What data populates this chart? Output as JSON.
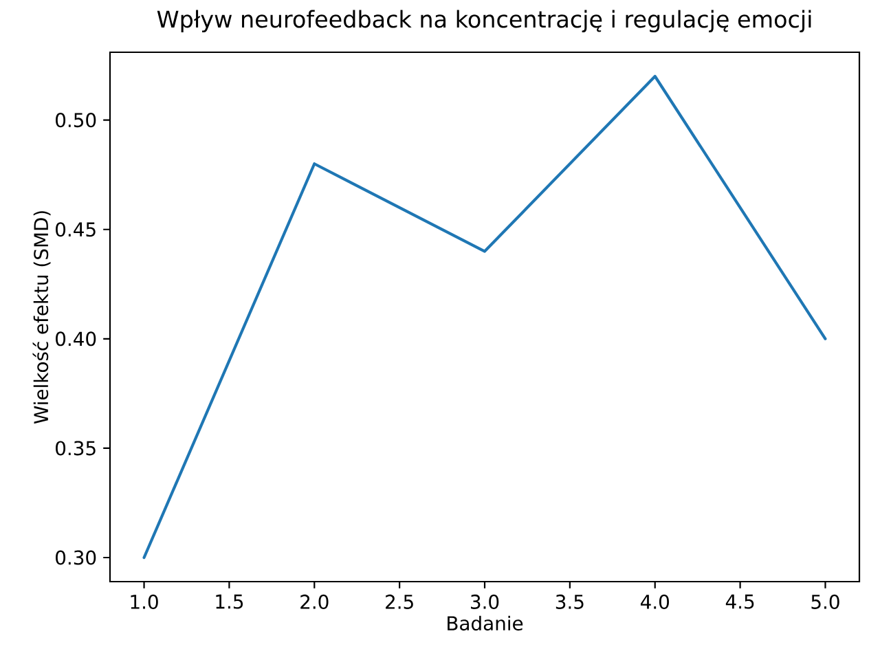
{
  "chart_data": {
    "type": "line",
    "title": "Wpływ neurofeedback na koncentrację i regulację emocji",
    "xlabel": "Badanie",
    "ylabel": "Wielkość efektu (SMD)",
    "x": [
      1,
      2,
      3,
      4,
      5
    ],
    "values": [
      0.3,
      0.48,
      0.44,
      0.52,
      0.4
    ],
    "color": "#1f77b4",
    "marker": "none",
    "line_style": "solid",
    "xlim": [
      0.8,
      5.2
    ],
    "ylim": [
      0.289,
      0.531
    ],
    "xticks": [
      {
        "value": 1,
        "label": "1.0"
      },
      {
        "value": 1.5,
        "label": "1.5"
      },
      {
        "value": 2,
        "label": "2.0"
      },
      {
        "value": 2.5,
        "label": "2.5"
      },
      {
        "value": 3,
        "label": "3.0"
      },
      {
        "value": 3.5,
        "label": "3.5"
      },
      {
        "value": 4,
        "label": "4.0"
      },
      {
        "value": 4.5,
        "label": "4.5"
      },
      {
        "value": 5,
        "label": "5.0"
      }
    ],
    "yticks": [
      {
        "value": 0.3,
        "label": "0.30"
      },
      {
        "value": 0.35,
        "label": "0.35"
      },
      {
        "value": 0.4,
        "label": "0.40"
      },
      {
        "value": 0.45,
        "label": "0.45"
      },
      {
        "value": 0.5,
        "label": "0.50"
      }
    ]
  }
}
